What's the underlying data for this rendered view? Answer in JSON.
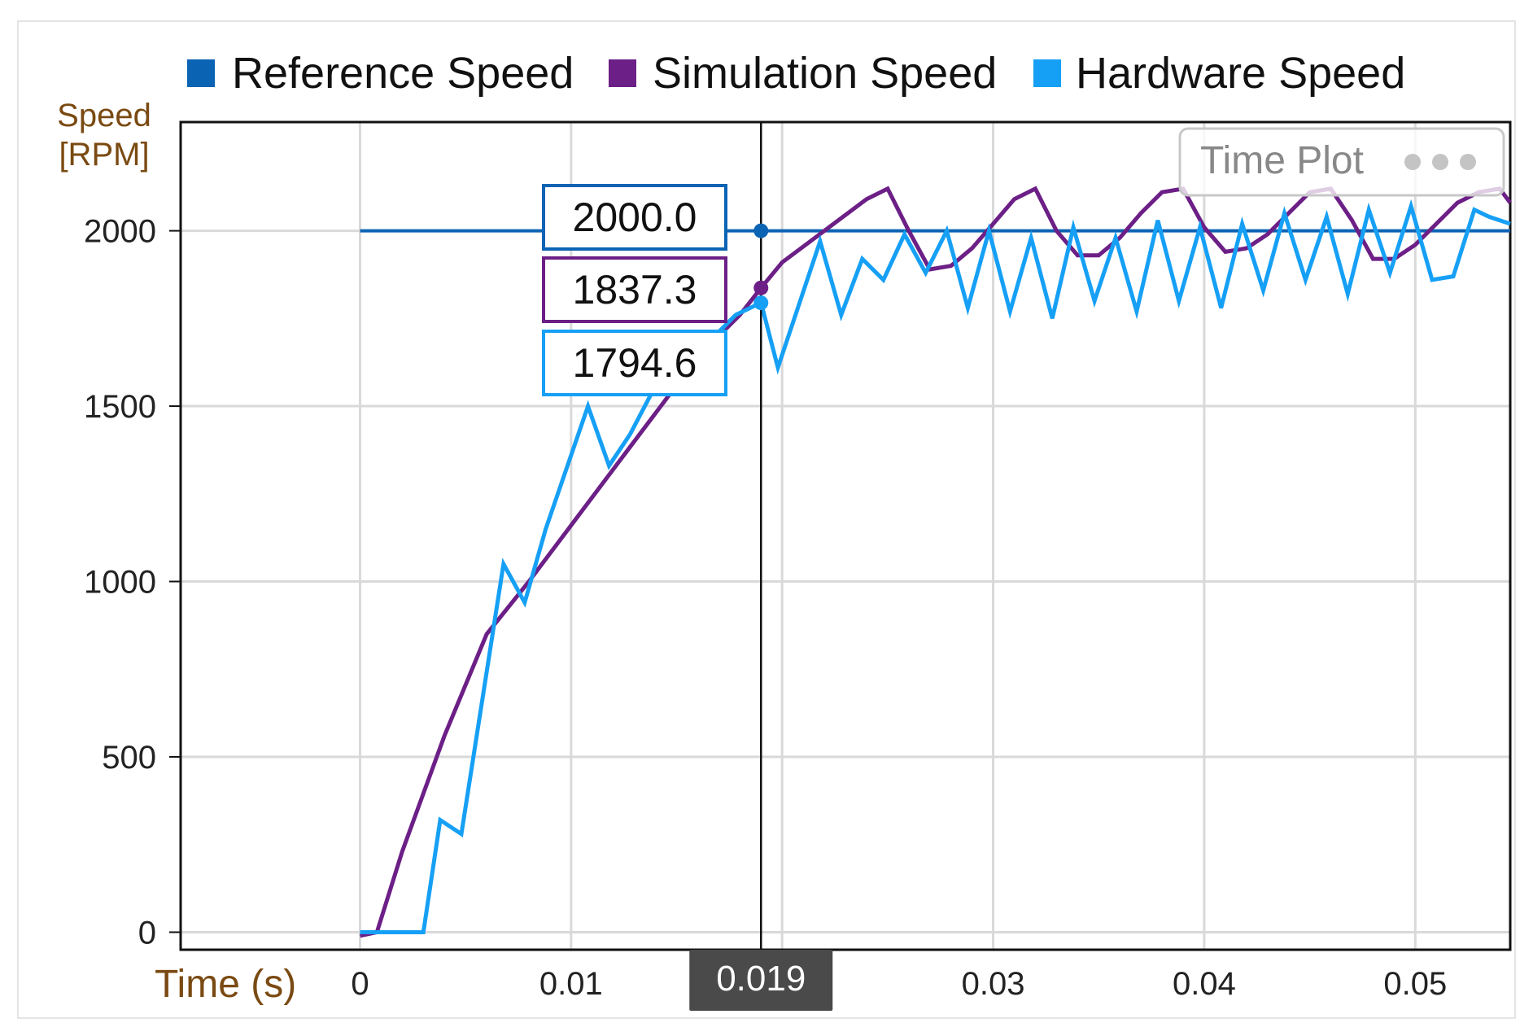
{
  "colors": {
    "reference": "#0b63b3",
    "simulation": "#6c1f86",
    "hardware": "#16a0f5",
    "grid": "#d9d9d9",
    "cursor_bg": "#4a4a4a"
  },
  "title_badge": {
    "label": "Time Plot"
  },
  "cursor": {
    "time": 0.019,
    "label": "0.019"
  },
  "readouts": {
    "reference": "2000.0",
    "simulation": "1837.3",
    "hardware": "1794.6"
  },
  "chart_data": {
    "type": "line",
    "xlabel": "Time (s)",
    "ylabel_lines": [
      "Speed",
      "[RPM]"
    ],
    "xlim": [
      -0.0085,
      0.0545
    ],
    "ylim": [
      -50,
      2310
    ],
    "xticks": [
      0,
      0.01,
      0.02,
      0.03,
      0.04,
      0.05
    ],
    "xtick_labels": [
      "0",
      "0.01",
      "",
      "0.03",
      "0.04",
      "0.05"
    ],
    "yticks": [
      0,
      500,
      1000,
      1500,
      2000
    ],
    "grid": true,
    "legend_position": "top",
    "series": [
      {
        "name": "Reference Speed",
        "x": [
          0,
          0.0545
        ],
        "y": [
          2000,
          2000
        ]
      },
      {
        "name": "Simulation Speed",
        "x": [
          0,
          0.0008,
          0.002,
          0.004,
          0.006,
          0.008,
          0.01,
          0.012,
          0.014,
          0.016,
          0.018,
          0.019,
          0.02,
          0.022,
          0.024,
          0.025,
          0.026,
          0.027,
          0.028,
          0.029,
          0.03,
          0.031,
          0.032,
          0.033,
          0.034,
          0.035,
          0.036,
          0.037,
          0.038,
          0.039,
          0.04,
          0.041,
          0.042,
          0.043,
          0.044,
          0.045,
          0.046,
          0.047,
          0.048,
          0.049,
          0.05,
          0.051,
          0.052,
          0.053,
          0.054,
          0.0545
        ],
        "y": [
          -10,
          0,
          230,
          560,
          850,
          1000,
          1160,
          1320,
          1480,
          1640,
          1760,
          1837,
          1910,
          2000,
          2090,
          2120,
          2000,
          1890,
          1900,
          1950,
          2020,
          2090,
          2120,
          2000,
          1930,
          1930,
          1980,
          2050,
          2110,
          2120,
          2010,
          1940,
          1950,
          1990,
          2050,
          2110,
          2120,
          2030,
          1920,
          1920,
          1960,
          2020,
          2080,
          2110,
          2120,
          2080
        ]
      },
      {
        "name": "Hardware Speed",
        "x": [
          0,
          0.003,
          0.0038,
          0.0048,
          0.0068,
          0.0078,
          0.0088,
          0.0108,
          0.0118,
          0.0128,
          0.0148,
          0.0158,
          0.0168,
          0.0178,
          0.019,
          0.0198,
          0.0218,
          0.0228,
          0.0238,
          0.0248,
          0.0258,
          0.0268,
          0.0278,
          0.0288,
          0.0298,
          0.0308,
          0.0318,
          0.0328,
          0.0338,
          0.0348,
          0.0358,
          0.0368,
          0.0378,
          0.0388,
          0.0398,
          0.0408,
          0.0418,
          0.0428,
          0.0438,
          0.0448,
          0.0458,
          0.0468,
          0.0478,
          0.0488,
          0.0498,
          0.0508,
          0.0518,
          0.0528,
          0.0535,
          0.0545
        ],
        "y": [
          0,
          0,
          320,
          280,
          1050,
          940,
          1150,
          1500,
          1330,
          1420,
          1650,
          1600,
          1700,
          1760,
          1795,
          1610,
          1970,
          1760,
          1920,
          1860,
          1990,
          1880,
          2000,
          1780,
          2000,
          1770,
          1980,
          1750,
          2010,
          1800,
          1980,
          1770,
          2030,
          1800,
          2010,
          1780,
          2020,
          1830,
          2050,
          1860,
          2040,
          1820,
          2060,
          1880,
          2070,
          1860,
          1870,
          2060,
          2040,
          2020
        ]
      }
    ]
  }
}
